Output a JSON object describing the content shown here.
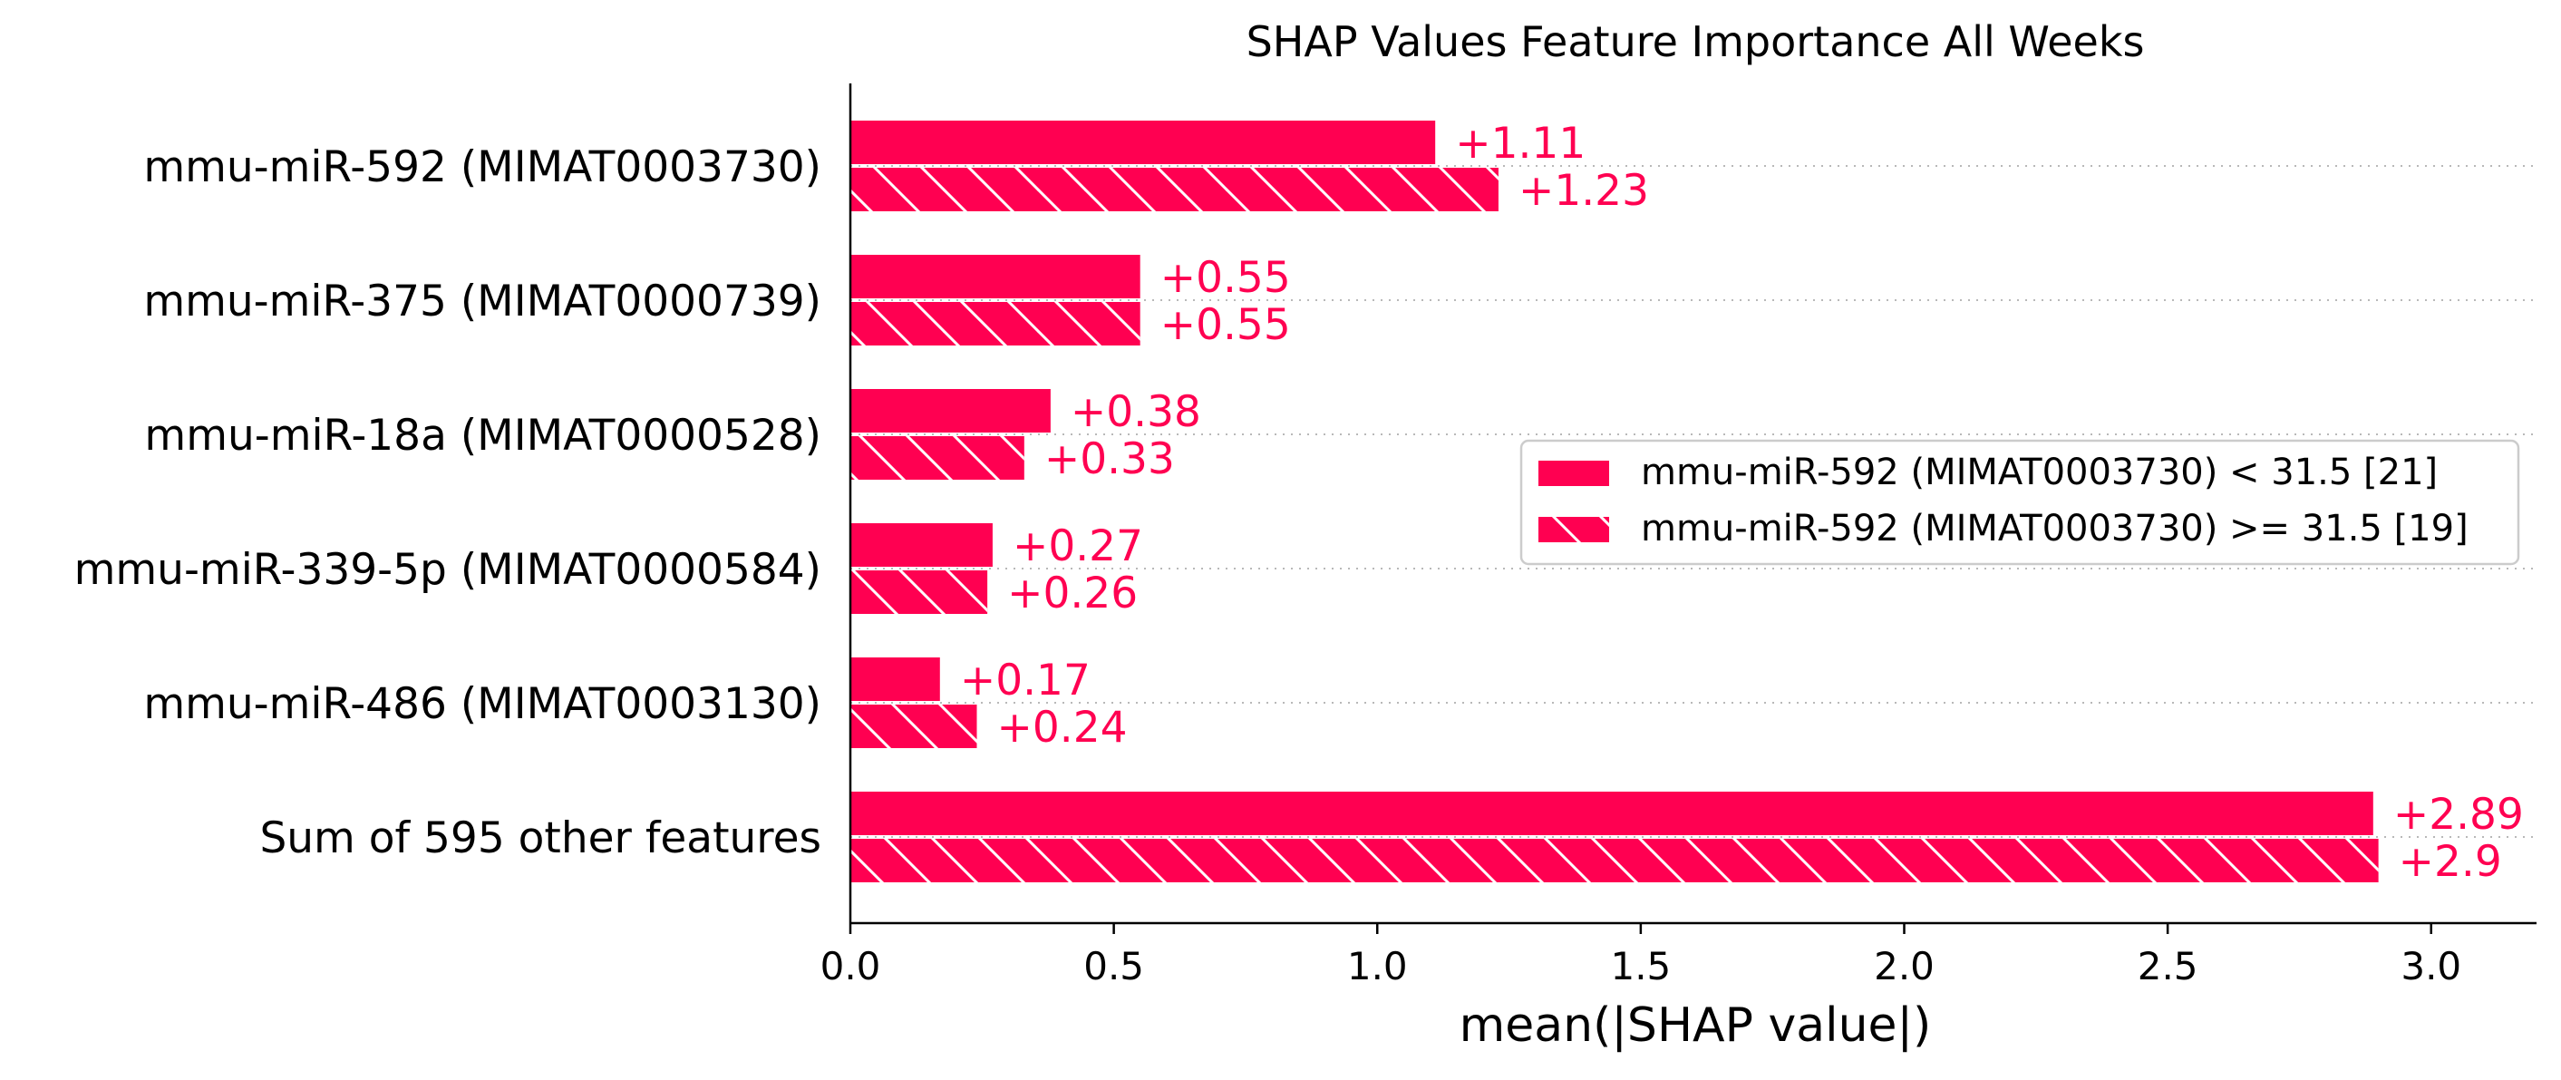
{
  "chart_data": {
    "type": "bar",
    "orientation": "horizontal",
    "title": "SHAP Values Feature Importance All Weeks",
    "xlabel": "mean(|SHAP value|)",
    "ylabel": "",
    "xlim": [
      0,
      3.2
    ],
    "xticks": [
      0.0,
      0.5,
      1.0,
      1.5,
      2.0,
      2.5,
      3.0
    ],
    "xtick_labels": [
      "0.0",
      "0.5",
      "1.0",
      "1.5",
      "2.0",
      "2.5",
      "3.0"
    ],
    "categories": [
      "mmu-miR-592 (MIMAT0003730)",
      "mmu-miR-375 (MIMAT0000739)",
      "mmu-miR-18a (MIMAT0000528)",
      "mmu-miR-339-5p (MIMAT0000584)",
      "mmu-miR-486 (MIMAT0003130)",
      "Sum of 595 other features"
    ],
    "series": [
      {
        "name": "mmu-miR-592 (MIMAT0003730) < 31.5 [21]",
        "pattern": "solid",
        "values": [
          1.11,
          0.55,
          0.38,
          0.27,
          0.17,
          2.89
        ],
        "labels": [
          "+1.11",
          "+0.55",
          "+0.38",
          "+0.27",
          "+0.17",
          "+2.89"
        ]
      },
      {
        "name": "mmu-miR-592 (MIMAT0003730) >= 31.5 [19]",
        "pattern": "hatched",
        "values": [
          1.23,
          0.55,
          0.33,
          0.26,
          0.24,
          2.9
        ],
        "labels": [
          "+1.23",
          "+0.55",
          "+0.33",
          "+0.26",
          "+0.24",
          "+2.9"
        ]
      }
    ],
    "grid": "horizontal dotted",
    "legend_position": "right",
    "colors": {
      "bar": "#ff0051",
      "hatch": "#ffffff",
      "text": "#000000",
      "grid": "#b8b8b8",
      "legend_border": "#cccccc"
    }
  }
}
